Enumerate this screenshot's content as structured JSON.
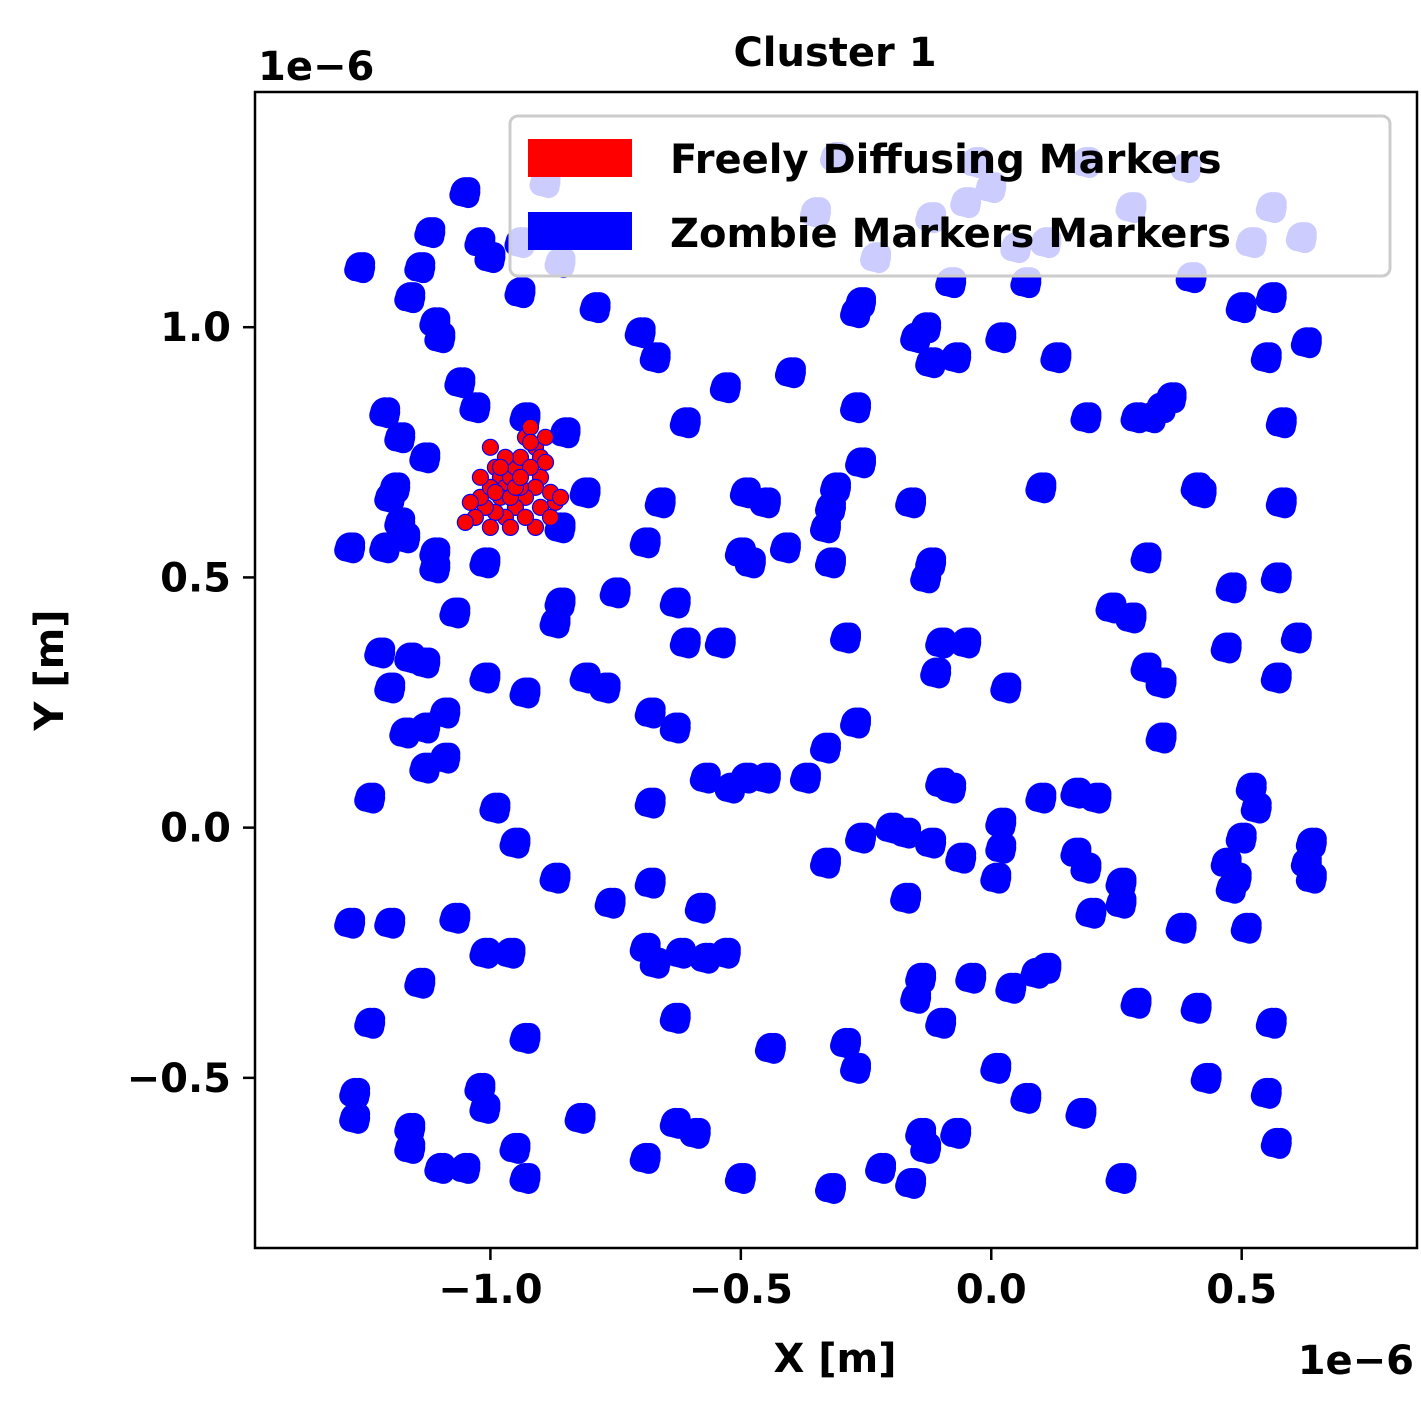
{
  "chart_data": {
    "type": "scatter",
    "title": "Cluster 1",
    "xlabel": "X [m]",
    "ylabel": "Y [m]",
    "x_offset_label": "1e−6",
    "y_offset_label": "1e−6",
    "xlim": [
      -1.47,
      0.85
    ],
    "ylim": [
      -0.84,
      1.47
    ],
    "xticks": [
      -1.0,
      -0.5,
      0.0,
      0.5
    ],
    "xtick_labels": [
      "−1.0",
      "−0.5",
      "0.0",
      "0.5"
    ],
    "yticks": [
      -0.5,
      0.0,
      0.5,
      1.0
    ],
    "ytick_labels": [
      "−0.5",
      "0.0",
      "0.5",
      "1.0"
    ],
    "grid": false,
    "legend_position": "top-right",
    "series": [
      {
        "name": "Freely Diffusing Markers",
        "color": "#ff0000",
        "points": [
          [
            -1.0,
            0.76
          ],
          [
            -0.99,
            0.72
          ],
          [
            -0.98,
            0.7
          ],
          [
            -0.97,
            0.68
          ],
          [
            -0.96,
            0.7
          ],
          [
            -0.95,
            0.72
          ],
          [
            -0.94,
            0.74
          ],
          [
            -0.93,
            0.78
          ],
          [
            -0.92,
            0.8
          ],
          [
            -0.91,
            0.76
          ],
          [
            -0.9,
            0.74
          ],
          [
            -0.89,
            0.78
          ],
          [
            -0.9,
            0.7
          ],
          [
            -0.91,
            0.68
          ],
          [
            -0.93,
            0.66
          ],
          [
            -0.95,
            0.64
          ],
          [
            -0.97,
            0.62
          ],
          [
            -0.99,
            0.63
          ],
          [
            -1.01,
            0.64
          ],
          [
            -1.03,
            0.62
          ],
          [
            -1.05,
            0.61
          ],
          [
            -1.02,
            0.66
          ],
          [
            -1.0,
            0.68
          ],
          [
            -0.98,
            0.66
          ],
          [
            -0.96,
            0.66
          ],
          [
            -0.94,
            0.68
          ],
          [
            -0.92,
            0.72
          ],
          [
            -0.9,
            0.64
          ],
          [
            -0.88,
            0.62
          ],
          [
            -0.87,
            0.65
          ],
          [
            -0.88,
            0.67
          ],
          [
            -0.91,
            0.6
          ],
          [
            -0.93,
            0.62
          ],
          [
            -0.96,
            0.6
          ],
          [
            -1.0,
            0.6
          ],
          [
            -1.02,
            0.7
          ],
          [
            -1.04,
            0.65
          ],
          [
            -0.97,
            0.74
          ],
          [
            -0.95,
            0.68
          ],
          [
            -0.99,
            0.67
          ],
          [
            -0.86,
            0.66
          ],
          [
            -0.89,
            0.73
          ],
          [
            -0.92,
            0.77
          ],
          [
            -0.94,
            0.7
          ],
          [
            -0.98,
            0.72
          ]
        ]
      },
      {
        "name": "Zombie Markers Markers",
        "color": "#0000ff",
        "points": [
          [
            -1.05,
            1.27
          ],
          [
            -1.12,
            1.19
          ],
          [
            -1.02,
            1.17
          ],
          [
            -1.0,
            1.14
          ],
          [
            -0.94,
            1.17
          ],
          [
            -1.26,
            1.12
          ],
          [
            -1.14,
            1.12
          ],
          [
            -1.16,
            1.06
          ],
          [
            -0.94,
            1.07
          ],
          [
            -0.79,
            1.04
          ],
          [
            -1.11,
            1.01
          ],
          [
            -1.1,
            0.98
          ],
          [
            -0.7,
            0.99
          ],
          [
            -0.67,
            0.94
          ],
          [
            -1.06,
            0.89
          ],
          [
            -1.03,
            0.84
          ],
          [
            -1.21,
            0.83
          ],
          [
            -1.18,
            0.78
          ],
          [
            -0.93,
            0.82
          ],
          [
            -0.85,
            0.79
          ],
          [
            -1.13,
            0.74
          ],
          [
            -1.19,
            0.68
          ],
          [
            -1.2,
            0.66
          ],
          [
            -1.18,
            0.61
          ],
          [
            -1.17,
            0.58
          ],
          [
            -1.28,
            0.56
          ],
          [
            -1.21,
            0.56
          ],
          [
            -1.11,
            0.55
          ],
          [
            -1.11,
            0.52
          ],
          [
            -1.01,
            0.53
          ],
          [
            -0.86,
            0.6
          ],
          [
            -0.81,
            0.67
          ],
          [
            -0.86,
            0.45
          ],
          [
            -0.87,
            0.41
          ],
          [
            -0.69,
            0.57
          ],
          [
            -0.66,
            0.65
          ],
          [
            -0.75,
            0.47
          ],
          [
            -0.63,
            0.45
          ],
          [
            -1.07,
            0.43
          ],
          [
            -1.22,
            0.35
          ],
          [
            -1.16,
            0.34
          ],
          [
            -1.13,
            0.33
          ],
          [
            -1.2,
            0.28
          ],
          [
            -1.01,
            0.3
          ],
          [
            -0.93,
            0.27
          ],
          [
            -0.81,
            0.3
          ],
          [
            -0.77,
            0.28
          ],
          [
            -0.61,
            0.37
          ],
          [
            -0.54,
            0.37
          ],
          [
            -1.09,
            0.23
          ],
          [
            -1.17,
            0.19
          ],
          [
            -1.13,
            0.2
          ],
          [
            -1.09,
            0.14
          ],
          [
            -1.13,
            0.12
          ],
          [
            -1.24,
            0.06
          ],
          [
            -0.68,
            0.23
          ],
          [
            -0.63,
            0.2
          ],
          [
            -0.57,
            0.1
          ],
          [
            -0.52,
            0.08
          ],
          [
            -0.49,
            0.1
          ],
          [
            -0.45,
            0.1
          ],
          [
            -0.99,
            0.04
          ],
          [
            -0.95,
            -0.03
          ],
          [
            -0.87,
            -0.1
          ],
          [
            -0.68,
            0.05
          ],
          [
            -0.68,
            -0.11
          ],
          [
            -0.76,
            -0.15
          ],
          [
            -0.58,
            -0.16
          ],
          [
            -1.28,
            -0.19
          ],
          [
            -1.2,
            -0.19
          ],
          [
            -1.07,
            -0.18
          ],
          [
            -1.01,
            -0.25
          ],
          [
            -0.96,
            -0.25
          ],
          [
            -0.69,
            -0.24
          ],
          [
            -0.67,
            -0.27
          ],
          [
            -0.62,
            -0.25
          ],
          [
            -0.57,
            -0.26
          ],
          [
            -0.53,
            -0.25
          ],
          [
            -1.14,
            -0.31
          ],
          [
            -1.24,
            -0.39
          ],
          [
            -1.02,
            -0.52
          ],
          [
            -1.01,
            -0.56
          ],
          [
            -0.93,
            -0.42
          ],
          [
            -0.63,
            -0.38
          ],
          [
            -0.29,
            -0.43
          ],
          [
            -1.27,
            -0.53
          ],
          [
            -1.27,
            -0.58
          ],
          [
            -1.16,
            -0.6
          ],
          [
            -1.16,
            -0.64
          ],
          [
            -1.1,
            -0.68
          ],
          [
            -1.05,
            -0.68
          ],
          [
            -0.95,
            -0.64
          ],
          [
            -0.93,
            -0.7
          ],
          [
            -0.82,
            -0.58
          ],
          [
            -0.63,
            -0.59
          ],
          [
            -0.59,
            -0.61
          ],
          [
            -0.69,
            -0.66
          ],
          [
            -0.44,
            -0.44
          ],
          [
            -0.5,
            -0.7
          ],
          [
            -0.32,
            -0.72
          ],
          [
            -0.27,
            -0.48
          ],
          [
            -0.22,
            -0.68
          ],
          [
            -0.16,
            -0.71
          ],
          [
            -0.15,
            -0.34
          ],
          [
            -0.14,
            -0.3
          ],
          [
            -0.14,
            -0.61
          ],
          [
            -0.1,
            -0.39
          ],
          [
            -0.07,
            -0.61
          ],
          [
            -0.13,
            -0.64
          ],
          [
            -0.49,
            0.67
          ],
          [
            -0.45,
            0.65
          ],
          [
            -0.5,
            0.55
          ],
          [
            -0.48,
            0.53
          ],
          [
            -0.41,
            0.56
          ],
          [
            -0.32,
            0.64
          ],
          [
            -0.33,
            0.6
          ],
          [
            -0.32,
            0.53
          ],
          [
            -0.31,
            0.68
          ],
          [
            -0.26,
            0.73
          ],
          [
            -0.29,
            0.38
          ],
          [
            -0.27,
            0.21
          ],
          [
            -0.33,
            0.16
          ],
          [
            -0.37,
            0.1
          ],
          [
            -0.13,
            0.5
          ],
          [
            -0.12,
            0.53
          ],
          [
            -0.16,
            0.65
          ],
          [
            -0.1,
            0.37
          ],
          [
            -0.05,
            0.37
          ],
          [
            -0.11,
            0.31
          ],
          [
            0.03,
            0.28
          ],
          [
            -0.1,
            0.09
          ],
          [
            -0.08,
            0.08
          ],
          [
            -0.2,
            0.0
          ],
          [
            -0.17,
            -0.01
          ],
          [
            -0.12,
            -0.03
          ],
          [
            -0.06,
            -0.06
          ],
          [
            -0.26,
            -0.02
          ],
          [
            -0.33,
            -0.07
          ],
          [
            -0.17,
            -0.14
          ],
          [
            0.01,
            -0.1
          ],
          [
            0.02,
            0.01
          ],
          [
            0.02,
            -0.04
          ],
          [
            0.1,
            0.06
          ],
          [
            0.17,
            0.07
          ],
          [
            0.21,
            0.06
          ],
          [
            0.17,
            -0.05
          ],
          [
            0.19,
            -0.08
          ],
          [
            0.2,
            -0.17
          ],
          [
            0.26,
            -0.11
          ],
          [
            0.26,
            -0.15
          ],
          [
            -0.04,
            -0.3
          ],
          [
            0.04,
            -0.32
          ],
          [
            0.09,
            -0.29
          ],
          [
            0.11,
            -0.28
          ],
          [
            0.29,
            -0.35
          ],
          [
            0.38,
            -0.2
          ],
          [
            0.41,
            -0.36
          ],
          [
            0.47,
            -0.07
          ],
          [
            0.49,
            -0.1
          ],
          [
            0.5,
            -0.02
          ],
          [
            0.52,
            0.08
          ],
          [
            0.53,
            0.04
          ],
          [
            0.48,
            -0.12
          ],
          [
            0.51,
            -0.2
          ],
          [
            0.64,
            -0.03
          ],
          [
            0.63,
            -0.07
          ],
          [
            0.64,
            -0.1
          ],
          [
            0.01,
            -0.48
          ],
          [
            0.07,
            -0.54
          ],
          [
            0.18,
            -0.57
          ],
          [
            0.43,
            -0.5
          ],
          [
            0.55,
            -0.53
          ],
          [
            0.56,
            -0.39
          ],
          [
            0.57,
            -0.63
          ],
          [
            0.26,
            -0.7
          ],
          [
            -0.12,
            0.93
          ],
          [
            -0.15,
            0.98
          ],
          [
            -0.13,
            1.0
          ],
          [
            -0.07,
            0.94
          ],
          [
            -0.08,
            1.09
          ],
          [
            0.02,
            0.98
          ],
          [
            0.07,
            1.09
          ],
          [
            0.13,
            0.94
          ],
          [
            0.19,
            0.82
          ],
          [
            0.29,
            0.82
          ],
          [
            0.32,
            0.82
          ],
          [
            0.34,
            0.84
          ],
          [
            0.36,
            0.86
          ],
          [
            0.41,
            0.68
          ],
          [
            0.42,
            0.67
          ],
          [
            0.1,
            0.68
          ],
          [
            0.31,
            0.54
          ],
          [
            0.24,
            0.44
          ],
          [
            0.28,
            0.42
          ],
          [
            0.48,
            0.48
          ],
          [
            0.47,
            0.36
          ],
          [
            0.57,
            0.5
          ],
          [
            0.58,
            0.65
          ],
          [
            0.61,
            0.38
          ],
          [
            0.57,
            0.3
          ],
          [
            0.31,
            0.32
          ],
          [
            0.34,
            0.29
          ],
          [
            0.34,
            0.18
          ],
          [
            0.5,
            1.04
          ],
          [
            0.56,
            1.06
          ],
          [
            0.55,
            0.94
          ],
          [
            0.63,
            0.97
          ],
          [
            0.58,
            0.81
          ],
          [
            0.4,
            1.1
          ],
          [
            -0.27,
            1.03
          ],
          [
            -0.26,
            1.05
          ],
          [
            -0.27,
            0.84
          ],
          [
            -0.4,
            0.91
          ],
          [
            -0.53,
            0.88
          ],
          [
            -0.61,
            0.81
          ],
          [
            -0.35,
            1.23
          ],
          [
            -0.31,
            1.34
          ],
          [
            -0.23,
            1.14
          ],
          [
            -0.12,
            1.22
          ],
          [
            0.0,
            1.28
          ],
          [
            -0.03,
            1.33
          ],
          [
            0.05,
            1.16
          ],
          [
            0.11,
            1.17
          ],
          [
            0.19,
            1.33
          ],
          [
            0.28,
            1.24
          ],
          [
            0.39,
            1.32
          ],
          [
            0.52,
            1.17
          ],
          [
            0.56,
            1.24
          ],
          [
            0.62,
            1.18
          ],
          [
            -0.05,
            1.25
          ],
          [
            -0.89,
            1.29
          ],
          [
            -0.86,
            1.13
          ]
        ]
      }
    ]
  }
}
